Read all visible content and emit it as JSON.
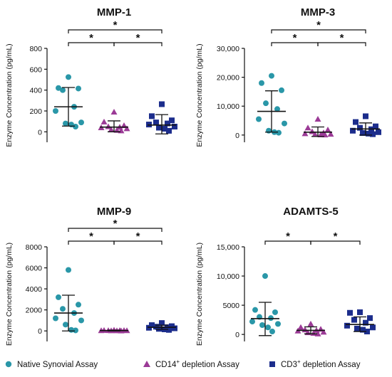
{
  "colors": {
    "native": "#2a97a8",
    "cd14": "#9b3a96",
    "cd3": "#1c2d8c",
    "axis": "#111111"
  },
  "legend": [
    {
      "label": "Native Synovial Assay",
      "marker": "circle",
      "color_key": "native"
    },
    {
      "label_main": "CD14",
      "label_sup": "+",
      "label_rest": " depletion Assay",
      "marker": "triangle",
      "color_key": "cd14"
    },
    {
      "label_main": "CD3",
      "label_sup": "+",
      "label_rest": " depletion Assay",
      "marker": "square",
      "color_key": "cd3"
    }
  ],
  "chart_data": [
    {
      "type": "scatter",
      "title": "MMP-1",
      "ylabel": "Enzyme Concentration (pg/mL)",
      "ylim": [
        -100,
        800
      ],
      "yticks": [
        0,
        200,
        400,
        600,
        800
      ],
      "ytick_labels": [
        "0",
        "200",
        "400",
        "600",
        "800"
      ],
      "groups": [
        {
          "name": "Native Synovial Assay",
          "marker": "circle",
          "values": [
            525,
            420,
            415,
            400,
            240,
            200,
            90,
            80,
            70,
            50
          ],
          "mean": 240,
          "sd_low": 55,
          "sd_high": 425
        },
        {
          "name": "CD14+ depletion Assay",
          "marker": "triangle",
          "values": [
            190,
            95,
            60,
            50,
            45,
            40,
            30,
            20,
            15,
            10
          ],
          "mean": 45,
          "sd_low": 0,
          "sd_high": 105
        },
        {
          "name": "CD3+ depletion Assay",
          "marker": "square",
          "values": [
            265,
            150,
            110,
            90,
            80,
            70,
            50,
            40,
            30,
            10
          ],
          "mean": 65,
          "sd_low": -20,
          "sd_high": 165
        }
      ],
      "significance": [
        {
          "from": 0,
          "to": 1,
          "level": 0,
          "label": "*"
        },
        {
          "from": 1,
          "to": 2,
          "level": 0,
          "label": "*"
        },
        {
          "from": 0,
          "to": 2,
          "level": 1,
          "label": "*"
        }
      ]
    },
    {
      "type": "scatter",
      "title": "MMP-3",
      "ylabel": "Enzyme Concentration (pg/mL)",
      "ylim": [
        -2500,
        30000
      ],
      "yticks": [
        0,
        10000,
        20000,
        30000
      ],
      "ytick_labels": [
        "0",
        "10,000",
        "20,000",
        "30,000"
      ],
      "groups": [
        {
          "name": "Native Synovial Assay",
          "marker": "circle",
          "values": [
            20500,
            18000,
            15500,
            11000,
            9000,
            5500,
            4000,
            1500,
            1000,
            800
          ],
          "mean": 8200,
          "sd_low": 1000,
          "sd_high": 15300
        },
        {
          "name": "CD14+ depletion Assay",
          "marker": "triangle",
          "values": [
            5500,
            2500,
            1800,
            1200,
            800,
            500,
            300,
            200,
            100,
            50
          ],
          "mean": 1000,
          "sd_low": -500,
          "sd_high": 2800
        },
        {
          "name": "CD3+ depletion Assay",
          "marker": "square",
          "values": [
            6500,
            4500,
            3000,
            2500,
            2000,
            1500,
            1000,
            700,
            500,
            300
          ],
          "mean": 2100,
          "sd_low": 0,
          "sd_high": 4200
        }
      ],
      "significance": [
        {
          "from": 0,
          "to": 1,
          "level": 0,
          "label": "*"
        },
        {
          "from": 1,
          "to": 2,
          "level": 0,
          "label": "*"
        },
        {
          "from": 0,
          "to": 2,
          "level": 1,
          "label": "*"
        }
      ]
    },
    {
      "type": "scatter",
      "title": "MMP-9",
      "ylabel": "Enzyme Concentration (pg/mL)",
      "ylim": [
        -1000,
        8000
      ],
      "yticks": [
        0,
        2000,
        4000,
        6000,
        8000
      ],
      "ytick_labels": [
        "0",
        "2000",
        "4000",
        "6000",
        "8000"
      ],
      "groups": [
        {
          "name": "Native Synovial Assay",
          "marker": "circle",
          "values": [
            5800,
            3200,
            2500,
            2100,
            1700,
            1200,
            1000,
            600,
            100,
            50
          ],
          "mean": 1700,
          "sd_low": 0,
          "sd_high": 3400
        },
        {
          "name": "CD14+ depletion Assay",
          "marker": "triangle",
          "values": [
            80,
            60,
            50,
            40,
            40,
            30,
            30,
            20,
            20,
            10
          ],
          "mean": 35,
          "sd_low": 0,
          "sd_high": 70
        },
        {
          "name": "CD3+ depletion Assay",
          "marker": "square",
          "values": [
            750,
            550,
            450,
            400,
            350,
            300,
            250,
            200,
            150,
            100
          ],
          "mean": 350,
          "sd_low": 150,
          "sd_high": 550
        }
      ],
      "significance": [
        {
          "from": 0,
          "to": 1,
          "level": 0,
          "label": "*"
        },
        {
          "from": 1,
          "to": 2,
          "level": 0,
          "label": "*"
        },
        {
          "from": 0,
          "to": 2,
          "level": 1,
          "label": "*"
        }
      ]
    },
    {
      "type": "scatter",
      "title": "ADAMTS-5",
      "ylabel": "Enzyme Concentration (pg/mL)",
      "ylim": [
        -1200,
        15000
      ],
      "yticks": [
        0,
        5000,
        10000,
        15000
      ],
      "ytick_labels": [
        "0",
        "5000",
        "10,000",
        "15,000"
      ],
      "groups": [
        {
          "name": "Native Synovial Assay",
          "marker": "circle",
          "values": [
            10000,
            4200,
            3800,
            3000,
            2800,
            2200,
            1800,
            1600,
            1200,
            500
          ],
          "mean": 2700,
          "sd_low": -200,
          "sd_high": 5500
        },
        {
          "name": "CD14+ depletion Assay",
          "marker": "triangle",
          "values": [
            1800,
            1200,
            900,
            800,
            700,
            600,
            400,
            300,
            200,
            100
          ],
          "mean": 700,
          "sd_low": 100,
          "sd_high": 1300
        },
        {
          "name": "CD3+ depletion Assay",
          "marker": "square",
          "values": [
            3800,
            3700,
            2800,
            2500,
            2000,
            1500,
            1200,
            1000,
            800,
            500
          ],
          "mean": 1700,
          "sd_low": 500,
          "sd_high": 3000
        }
      ],
      "significance": [
        {
          "from": 0,
          "to": 1,
          "level": 0,
          "label": "*"
        },
        {
          "from": 1,
          "to": 2,
          "level": 0,
          "label": "*"
        }
      ]
    }
  ]
}
